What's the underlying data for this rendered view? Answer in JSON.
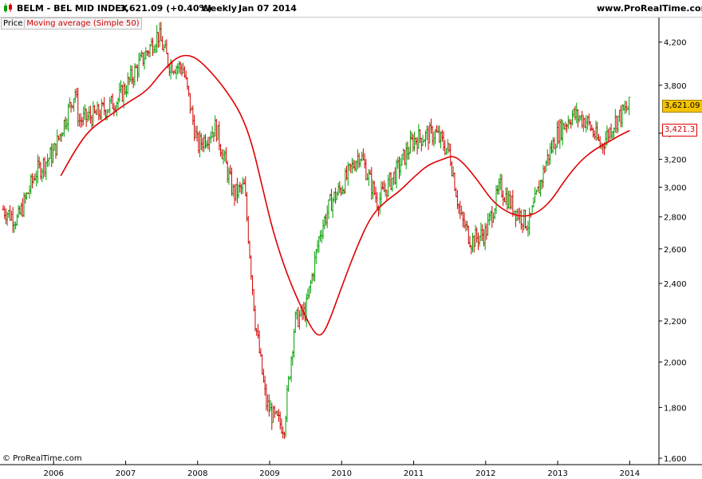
{
  "header": {
    "symbol": "BELM - BEL MID INDEX",
    "quote": "3,621.09 (+0.40%)",
    "period": "Weekly",
    "date": "Jan 07 2014",
    "site": "www.ProRealTime.com"
  },
  "legend": {
    "price_label": "Price",
    "ma_label": "Moving average (Simple 50)"
  },
  "footer": {
    "copyright": "© ProRealTime.com"
  },
  "badges": {
    "last_price": "3,621.09",
    "ma_value": "3,421.3"
  },
  "colors": {
    "up": "#00a000",
    "down": "#d00000",
    "ma": "#e00000",
    "price_badge": "#f5c400"
  },
  "chart_data": {
    "type": "line",
    "title": "BELM - BEL MID INDEX",
    "xlabel": "",
    "ylabel": "",
    "y_scale": "log",
    "ylim": [
      1600,
      4300
    ],
    "xlim": [
      2005.3,
      2014.45
    ],
    "x_ticks": [
      2006,
      2007,
      2008,
      2009,
      2010,
      2011,
      2012,
      2013,
      2014
    ],
    "x_tick_labels": [
      "2006",
      "2007",
      "2008",
      "2009",
      "2010",
      "2011",
      "2012",
      "2013",
      "2014"
    ],
    "y_ticks": [
      1600,
      1800,
      2000,
      2200,
      2400,
      2600,
      2800,
      3000,
      3200,
      3400,
      3800,
      4200
    ],
    "y_tick_labels": [
      "1,600",
      "1,800",
      "2,000",
      "2,200",
      "2,400",
      "2,600",
      "2,800",
      "3,000",
      "3,200",
      "3,400",
      "3,800",
      "4,200"
    ],
    "legend_position": "top-left",
    "grid": false,
    "series": [
      {
        "name": "Price",
        "style": "weekly bars",
        "x": [
          2005.3,
          2005.5,
          2005.75,
          2006.0,
          2006.3,
          2006.35,
          2006.6,
          2006.9,
          2007.2,
          2007.45,
          2007.6,
          2007.8,
          2008.0,
          2008.25,
          2008.5,
          2008.65,
          2008.8,
          2008.95,
          2009.05,
          2009.2,
          2009.35,
          2009.5,
          2009.7,
          2009.85,
          2010.0,
          2010.25,
          2010.5,
          2010.75,
          2011.0,
          2011.3,
          2011.5,
          2011.65,
          2011.8,
          2012.0,
          2012.2,
          2012.4,
          2012.6,
          2012.85,
          2013.0,
          2013.2,
          2013.4,
          2013.6,
          2013.8,
          2014.0
        ],
        "values": [
          2850,
          2780,
          3100,
          3250,
          3750,
          3500,
          3550,
          3680,
          4000,
          4280,
          4000,
          3950,
          3300,
          3450,
          2950,
          3000,
          2200,
          1820,
          1760,
          1720,
          2200,
          2250,
          2700,
          2900,
          3000,
          3250,
          2900,
          3100,
          3350,
          3400,
          3250,
          2800,
          2650,
          2700,
          3000,
          2850,
          2750,
          3200,
          3400,
          3550,
          3500,
          3300,
          3500,
          3621
        ]
      },
      {
        "name": "Moving average (Simple 50)",
        "x": [
          2006.1,
          2006.3,
          2006.5,
          2006.8,
          2007.0,
          2007.3,
          2007.5,
          2007.7,
          2007.85,
          2008.0,
          2008.2,
          2008.4,
          2008.6,
          2008.75,
          2008.9,
          2009.05,
          2009.25,
          2009.45,
          2009.6,
          2009.7,
          2009.8,
          2010.0,
          2010.2,
          2010.4,
          2010.6,
          2010.8,
          2011.0,
          2011.2,
          2011.4,
          2011.55,
          2011.7,
          2011.9,
          2012.1,
          2012.3,
          2012.5,
          2012.7,
          2012.9,
          2013.1,
          2013.3,
          2013.5,
          2013.7,
          2013.85,
          2014.0
        ],
        "values": [
          3080,
          3270,
          3430,
          3550,
          3640,
          3750,
          3920,
          4050,
          4080,
          4040,
          3910,
          3750,
          3560,
          3330,
          3000,
          2700,
          2440,
          2260,
          2150,
          2120,
          2170,
          2380,
          2600,
          2800,
          2900,
          2970,
          3070,
          3160,
          3200,
          3230,
          3170,
          3040,
          2900,
          2830,
          2800,
          2820,
          2900,
          3050,
          3180,
          3270,
          3330,
          3380,
          3421
        ]
      }
    ]
  }
}
